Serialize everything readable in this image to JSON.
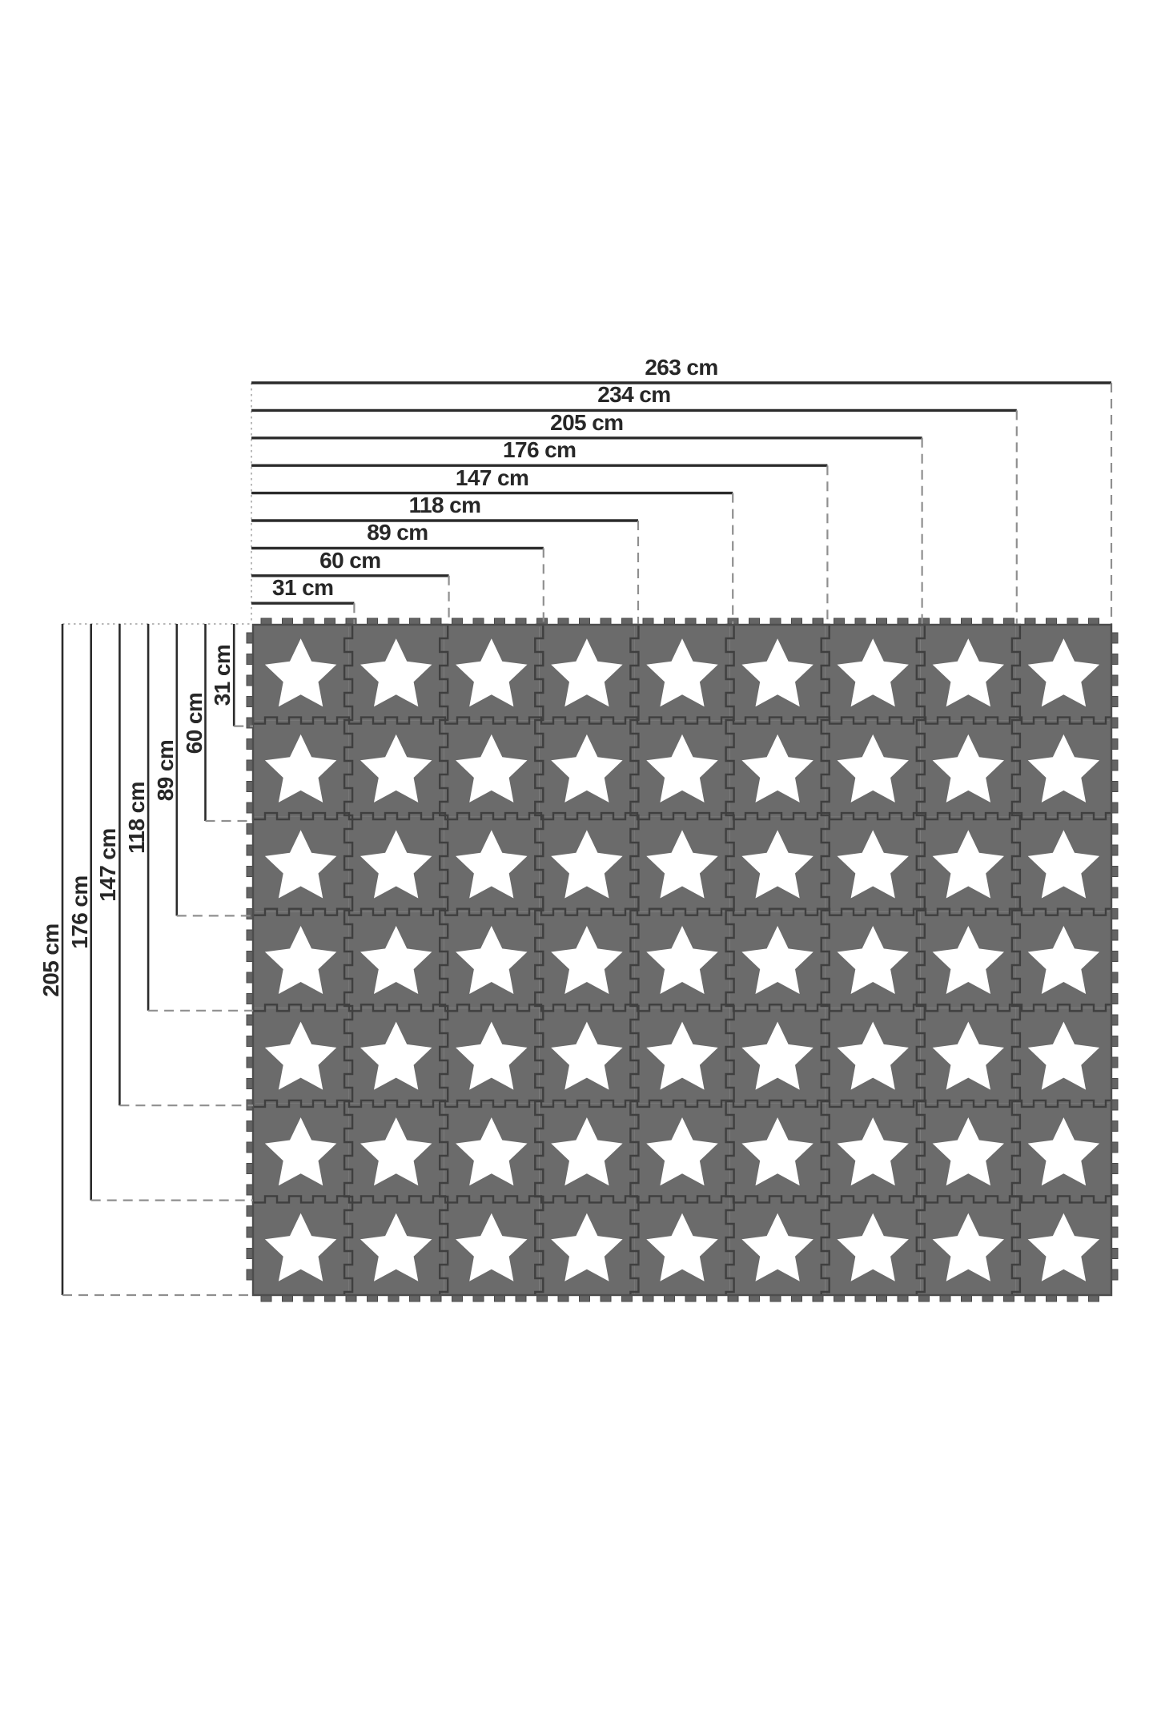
{
  "diagram": {
    "type": "product-dimension-diagram",
    "unit": "cm",
    "width_dimensions": [
      {
        "value": 263,
        "label": "263 cm"
      },
      {
        "value": 234,
        "label": "234 cm"
      },
      {
        "value": 205,
        "label": "205 cm"
      },
      {
        "value": 176,
        "label": "176 cm"
      },
      {
        "value": 147,
        "label": "147 cm"
      },
      {
        "value": 118,
        "label": "118 cm"
      },
      {
        "value": 89,
        "label": "89 cm"
      },
      {
        "value": 60,
        "label": "60 cm"
      },
      {
        "value": 31,
        "label": "31 cm"
      }
    ],
    "height_dimensions": [
      {
        "value": 205,
        "label": "205 cm"
      },
      {
        "value": 176,
        "label": "176 cm"
      },
      {
        "value": 147,
        "label": "147 cm"
      },
      {
        "value": 118,
        "label": "118 cm"
      },
      {
        "value": 89,
        "label": "89 cm"
      },
      {
        "value": 60,
        "label": "60 cm"
      },
      {
        "value": 31,
        "label": "31 cm"
      }
    ],
    "mat": {
      "columns": 9,
      "rows": 7,
      "tile_count": 63,
      "tile_motif": "star",
      "total_width_cm": 263,
      "total_height_cm": 205
    },
    "colors": {
      "tile_gray": "#6b6b6b",
      "seam_dark": "#3f3f3f",
      "tooth_gray": "#646464",
      "star_white": "#ffffff",
      "dimension_line": "#2b2b2b",
      "dashed_guide": "#8f8f8f",
      "dotted_guide": "#b8b8b8",
      "background": "#ffffff"
    }
  }
}
